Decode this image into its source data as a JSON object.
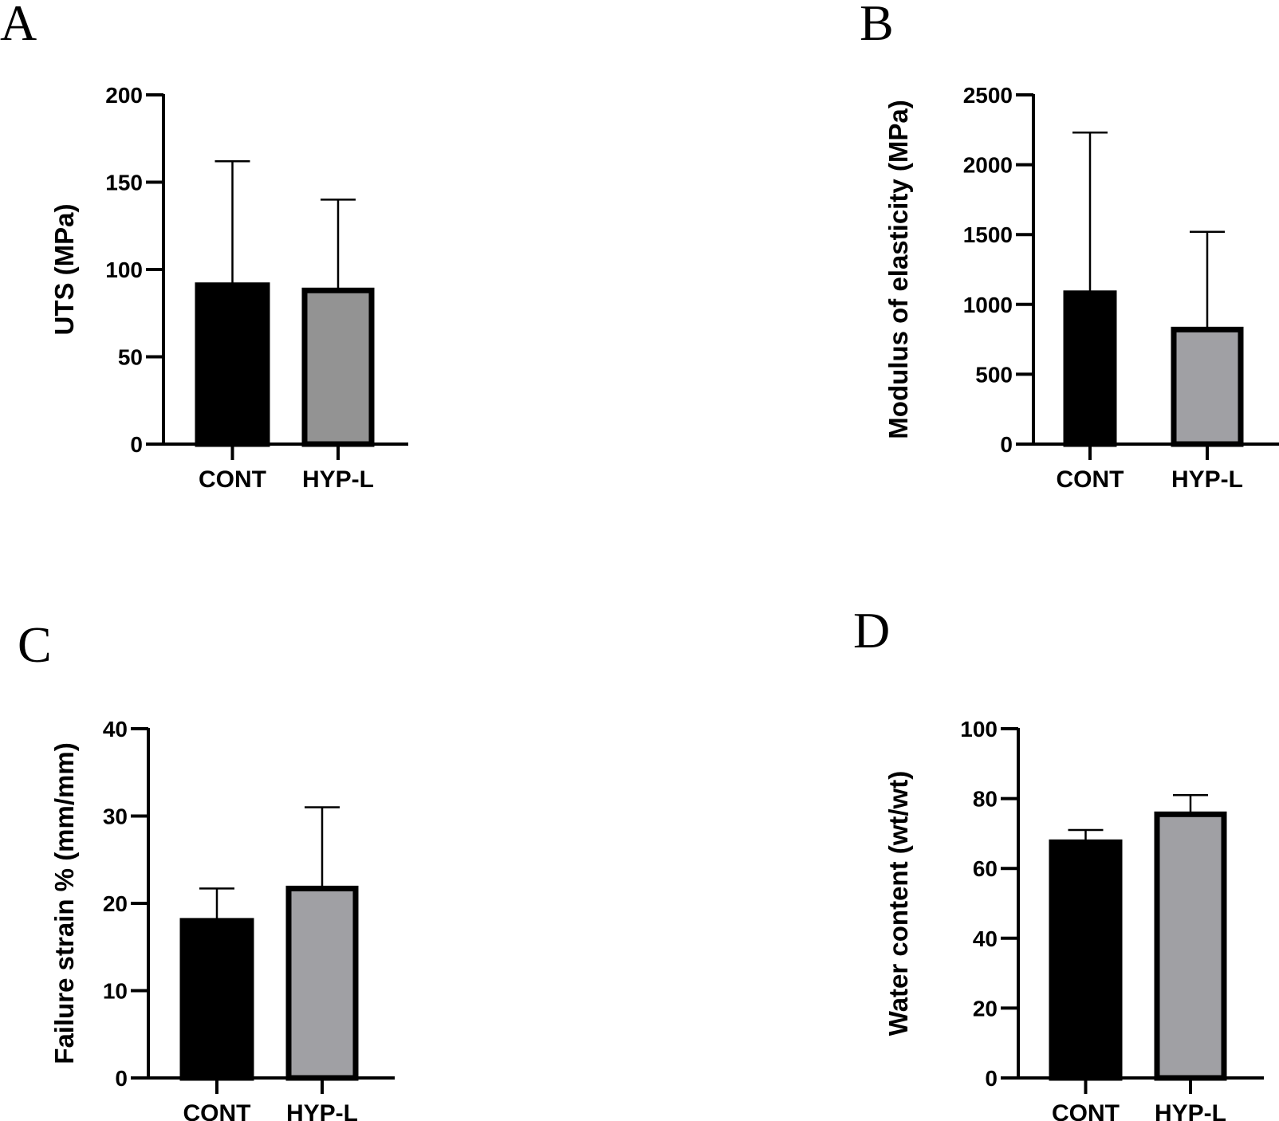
{
  "figure": {
    "panels": [
      "A",
      "B",
      "C",
      "D"
    ]
  },
  "colors": {
    "cont_fill": "#000000",
    "hypl_fill": "#a0a0a4",
    "hypl_fill_A": "#939393",
    "stroke": "#000000"
  },
  "chart_data": [
    {
      "panel": "A",
      "type": "bar",
      "categories": [
        "CONT",
        "HYP-L"
      ],
      "values": [
        91,
        88
      ],
      "errors_upper": [
        162,
        140
      ],
      "ylabel": "UTS (MPa)",
      "ylim": [
        0,
        200
      ],
      "yticks": [
        0,
        50,
        100,
        150,
        200
      ],
      "ytick_labels": [
        "0",
        "50",
        "100",
        "150",
        "200"
      ]
    },
    {
      "panel": "B",
      "type": "bar",
      "categories": [
        "CONT",
        "HYP-L"
      ],
      "values": [
        1080,
        820
      ],
      "errors_upper": [
        2230,
        1520
      ],
      "ylabel": "Modulus of elasticity (MPa)",
      "ylim": [
        0,
        2500
      ],
      "yticks": [
        0,
        500,
        1000,
        1500,
        2000,
        2500
      ],
      "ytick_labels": [
        "0",
        "500",
        "1000",
        "1500",
        "2000",
        "2500"
      ]
    },
    {
      "panel": "C",
      "type": "bar",
      "categories": [
        "CONT",
        "HYP-L"
      ],
      "values": [
        18,
        21.7
      ],
      "errors_upper": [
        21.7,
        31
      ],
      "ylabel": "Failure strain % (mm/mm)",
      "ylim": [
        0,
        40
      ],
      "yticks": [
        0,
        10,
        20,
        30,
        40
      ],
      "ytick_labels": [
        "0",
        "10",
        "20",
        "30",
        "40"
      ]
    },
    {
      "panel": "D",
      "type": "bar",
      "categories": [
        "CONT",
        "HYP-L"
      ],
      "values": [
        67.5,
        75.5
      ],
      "errors_upper": [
        71,
        81
      ],
      "ylabel": "Water content (wt/wt)",
      "ylim": [
        0,
        100
      ],
      "yticks": [
        0,
        20,
        40,
        60,
        80,
        100
      ],
      "ytick_labels": [
        "0",
        "20",
        "40",
        "60",
        "80",
        "100"
      ]
    }
  ]
}
